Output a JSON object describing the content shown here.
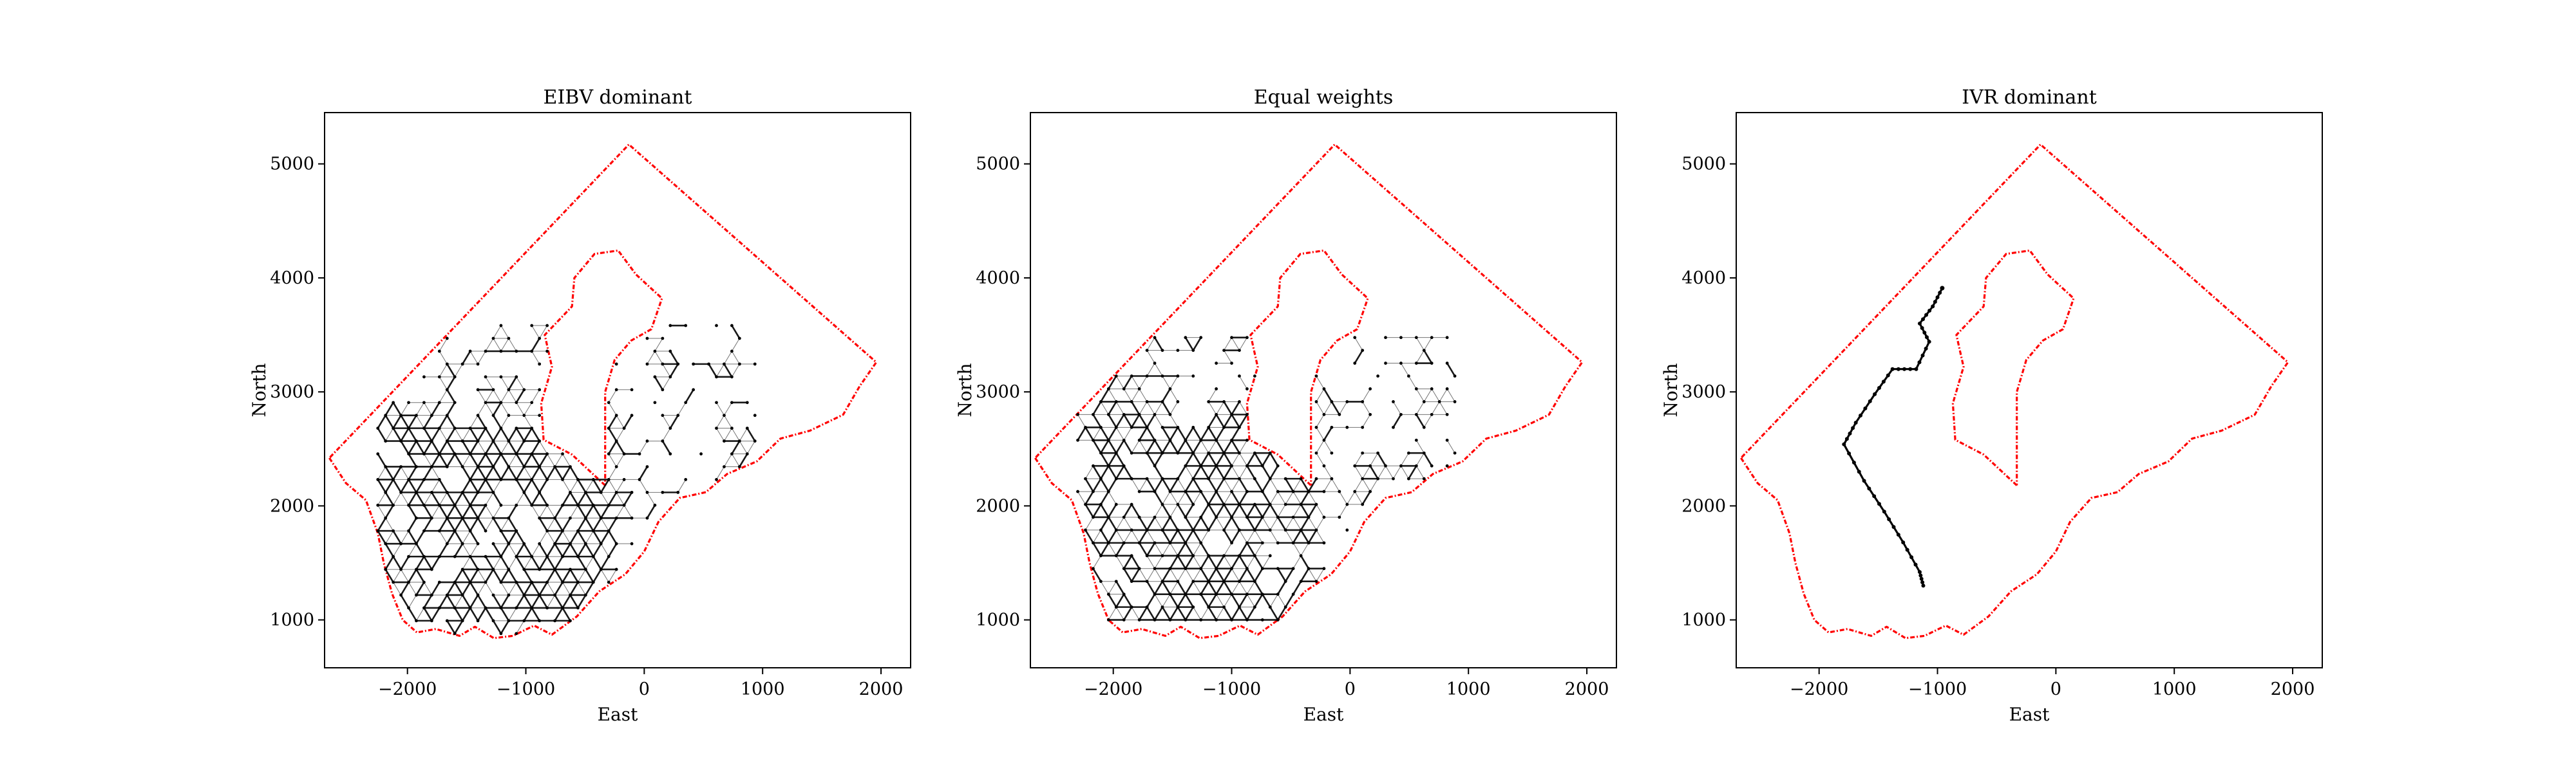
{
  "figure": {
    "background": "#ffffff",
    "boundary_color": "#ff0000",
    "path_color": "#000000"
  },
  "chart_data": [
    {
      "type": "scatter",
      "title": "EIBV dominant",
      "xlabel": "East",
      "ylabel": "North",
      "xlim": [
        -2700,
        2250
      ],
      "ylim": [
        580,
        5450
      ],
      "xticks": [
        -2000,
        -1000,
        0,
        1000,
        2000
      ],
      "yticks": [
        1000,
        2000,
        3000,
        4000,
        5000
      ],
      "tick_labels_x": [
        "−2000",
        "−1000",
        "0",
        "1000",
        "2000"
      ],
      "tick_labels_y": [
        "1000",
        "2000",
        "3000",
        "4000",
        "5000"
      ],
      "grid": false,
      "legend": "none",
      "path_style": "dense lattice"
    },
    {
      "type": "scatter",
      "title": "Equal weights",
      "xlabel": "East",
      "ylabel": "North",
      "xlim": [
        -2700,
        2250
      ],
      "ylim": [
        580,
        5450
      ],
      "xticks": [
        -2000,
        -1000,
        0,
        1000,
        2000
      ],
      "yticks": [
        1000,
        2000,
        3000,
        4000,
        5000
      ],
      "tick_labels_x": [
        "−2000",
        "−1000",
        "0",
        "1000",
        "2000"
      ],
      "tick_labels_y": [
        "1000",
        "2000",
        "3000",
        "4000",
        "5000"
      ],
      "grid": false,
      "legend": "none",
      "path_style": "dense lattice"
    },
    {
      "type": "scatter",
      "title": "IVR dominant",
      "xlabel": "East",
      "ylabel": "North",
      "xlim": [
        -2700,
        2250
      ],
      "ylim": [
        580,
        5450
      ],
      "xticks": [
        -2000,
        -1000,
        0,
        1000,
        2000
      ],
      "yticks": [
        1000,
        2000,
        3000,
        4000,
        5000
      ],
      "tick_labels_x": [
        "−2000",
        "−1000",
        "0",
        "1000",
        "2000"
      ],
      "tick_labels_y": [
        "1000",
        "2000",
        "3000",
        "4000",
        "5000"
      ],
      "grid": false,
      "legend": "none",
      "path_style": "single trajectory",
      "path": [
        [
          -1120,
          1300
        ],
        [
          -1150,
          1420
        ],
        [
          -1290,
          1680
        ],
        [
          -1450,
          1950
        ],
        [
          -1620,
          2220
        ],
        [
          -1790,
          2540
        ],
        [
          -1690,
          2730
        ],
        [
          -1530,
          2980
        ],
        [
          -1380,
          3200
        ],
        [
          -1180,
          3200
        ],
        [
          -1070,
          3440
        ],
        [
          -1150,
          3600
        ],
        [
          -1040,
          3750
        ],
        [
          -960,
          3910
        ]
      ]
    }
  ],
  "boundary": {
    "outer": [
      [
        -2660,
        2420
      ],
      [
        -2520,
        2200
      ],
      [
        -2350,
        2050
      ],
      [
        -2250,
        1760
      ],
      [
        -2200,
        1500
      ],
      [
        -2130,
        1230
      ],
      [
        -2040,
        1000
      ],
      [
        -1920,
        890
      ],
      [
        -1760,
        920
      ],
      [
        -1560,
        860
      ],
      [
        -1430,
        940
      ],
      [
        -1270,
        840
      ],
      [
        -1110,
        860
      ],
      [
        -930,
        950
      ],
      [
        -780,
        870
      ],
      [
        -570,
        1030
      ],
      [
        -380,
        1250
      ],
      [
        -160,
        1400
      ],
      [
        0,
        1600
      ],
      [
        120,
        1860
      ],
      [
        300,
        2070
      ],
      [
        520,
        2120
      ],
      [
        700,
        2280
      ],
      [
        950,
        2390
      ],
      [
        1150,
        2590
      ],
      [
        1400,
        2660
      ],
      [
        1680,
        2800
      ],
      [
        1820,
        3050
      ],
      [
        1960,
        3260
      ],
      [
        -130,
        5170
      ],
      [
        -2660,
        2420
      ]
    ],
    "inner": [
      [
        -330,
        2180
      ],
      [
        -610,
        2450
      ],
      [
        -850,
        2580
      ],
      [
        -870,
        2900
      ],
      [
        -780,
        3220
      ],
      [
        -840,
        3500
      ],
      [
        -610,
        3750
      ],
      [
        -590,
        4000
      ],
      [
        -420,
        4210
      ],
      [
        -220,
        4240
      ],
      [
        -70,
        4030
      ],
      [
        150,
        3820
      ],
      [
        60,
        3550
      ],
      [
        -110,
        3450
      ],
      [
        -250,
        3280
      ],
      [
        -330,
        3000
      ],
      [
        -330,
        2180
      ]
    ]
  },
  "lattice": {
    "panel_1": {
      "east": [
        -2250,
        850
      ],
      "north": [
        880,
        3620
      ],
      "step": 130
    },
    "panel_2": {
      "east": [
        -2300,
        880
      ],
      "north": [
        1000,
        3520
      ],
      "step": 130
    }
  }
}
